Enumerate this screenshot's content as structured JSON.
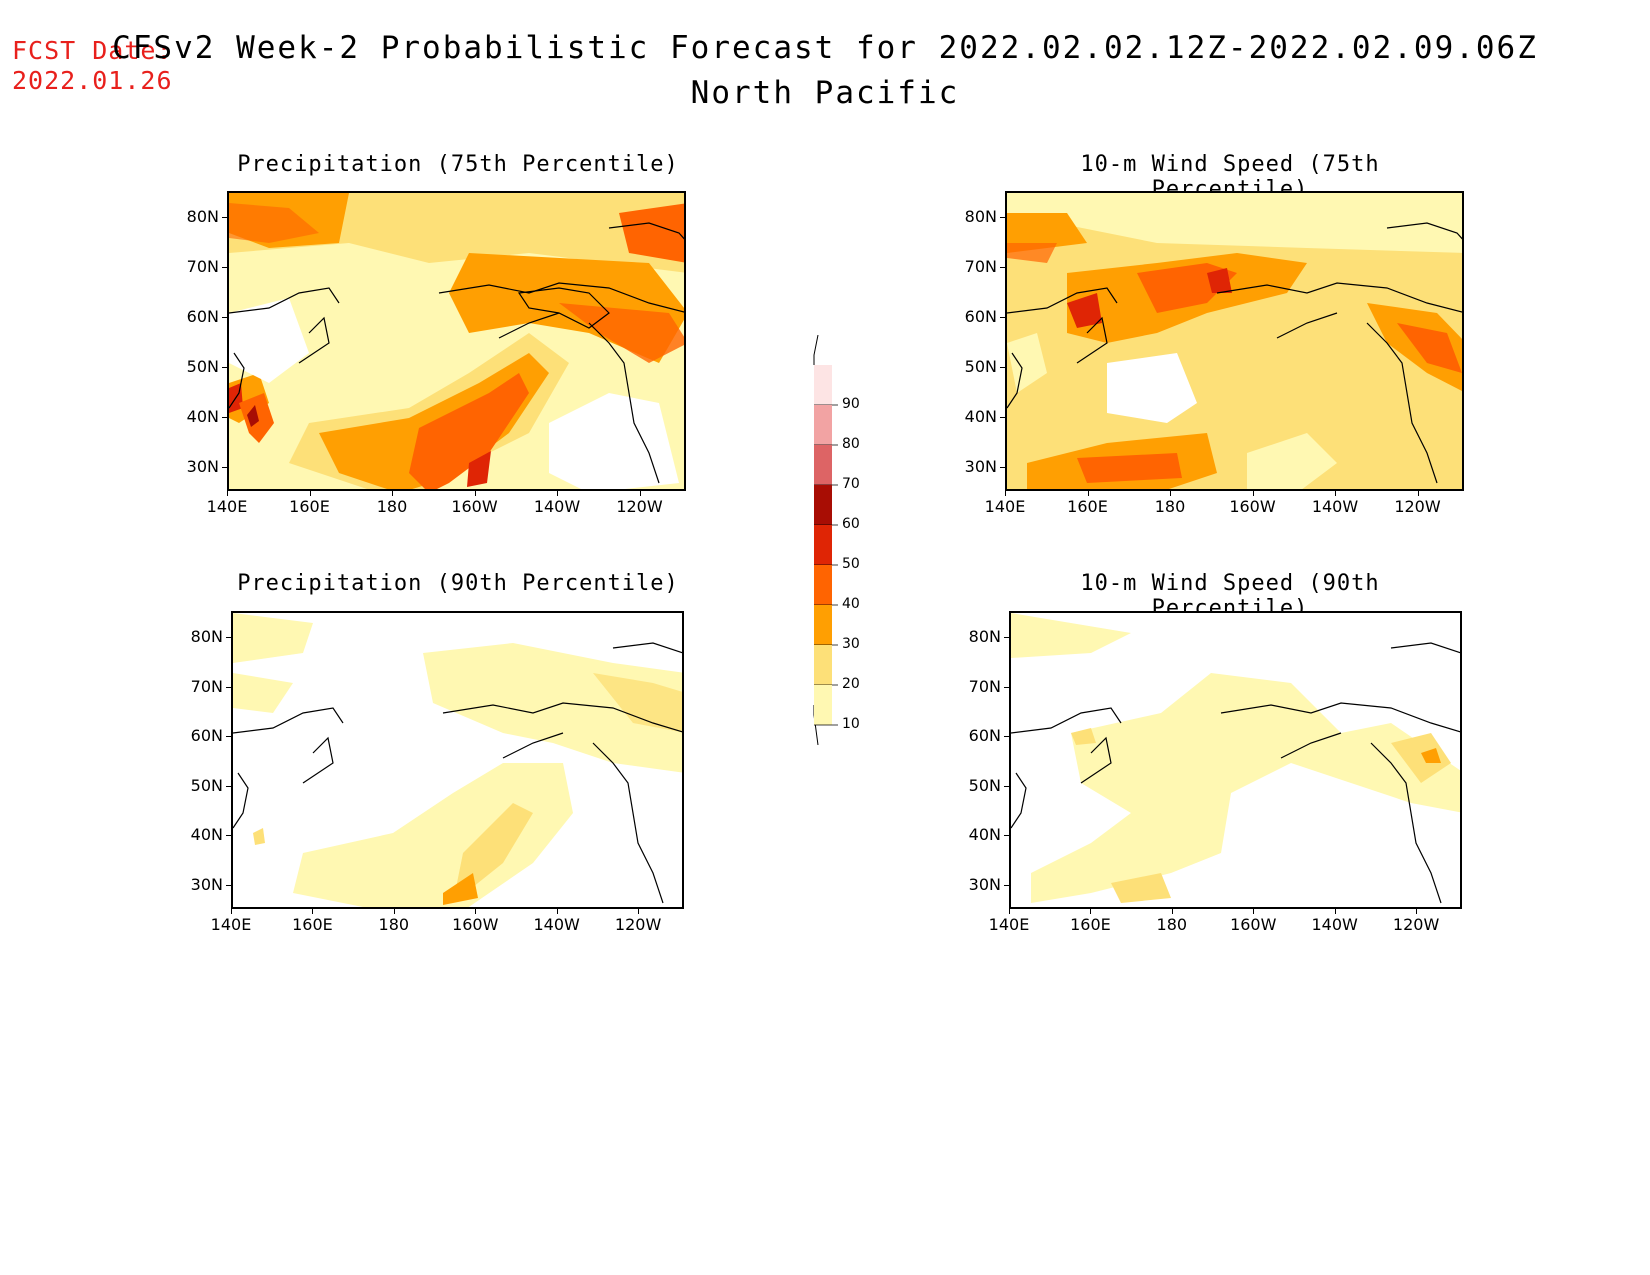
{
  "header": {
    "fcst_label": "FCST Date:",
    "fcst_date": "2022.01.26",
    "title": "CFSv2 Week-2 Probabilistic Forecast for 2022.02.02.12Z-2022.02.09.06Z",
    "region": "North Pacific"
  },
  "axes": {
    "lat_labels": [
      "80N",
      "70N",
      "60N",
      "50N",
      "40N",
      "30N"
    ],
    "lon_labels": [
      "140E",
      "160E",
      "180",
      "160W",
      "140W",
      "120W"
    ]
  },
  "panels": [
    {
      "title": "Precipitation (75th Percentile)"
    },
    {
      "title": "10-m Wind Speed (75th Percentile)"
    },
    {
      "title": "Precipitation (90th Percentile)"
    },
    {
      "title": "10-m Wind Speed (90th Percentile)"
    }
  ],
  "colorbar": {
    "labels": [
      "90",
      "80",
      "70",
      "60",
      "50",
      "40",
      "30",
      "20",
      "10"
    ],
    "colors": [
      "#fde4e4",
      "#f2a3a3",
      "#dd6465",
      "#a80d04",
      "#df2505",
      "#ff6401",
      "#ff9f02",
      "#fde078",
      "#fff8b2"
    ]
  }
}
